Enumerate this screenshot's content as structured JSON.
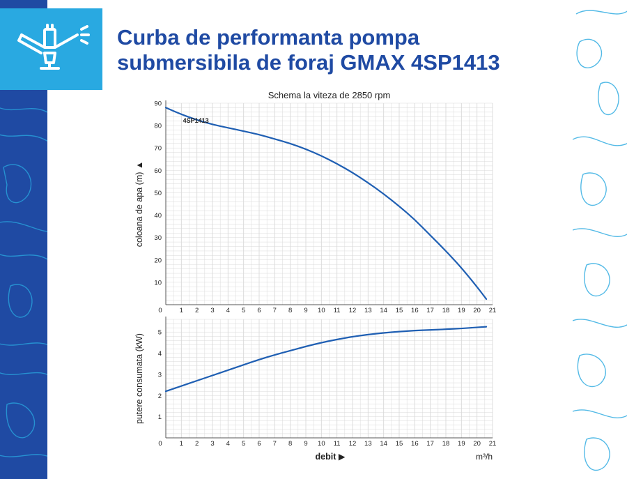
{
  "header": {
    "title_line1": "Curba de performanta pompa",
    "title_line2": "submersibila de foraj GMAX 4SP1413",
    "logo_icon": "submersible-pump-icon"
  },
  "colors": {
    "brand_blue": "#1f4aa3",
    "accent_light_blue": "#29a9e1",
    "curve_blue": "#1f5fb3",
    "grid": "#d9d9d9"
  },
  "chart_data": [
    {
      "type": "line",
      "title": "Schema la viteza de 2850 rpm",
      "xlabel": "",
      "ylabel": "coloana de apa (m) ▲",
      "xlim": [
        0,
        21
      ],
      "ylim": [
        0,
        90
      ],
      "x_ticks": [
        "0",
        "1",
        "2",
        "3",
        "4",
        "5",
        "6",
        "7",
        "8",
        "9",
        "10",
        "11",
        "12",
        "13",
        "14",
        "15",
        "16",
        "17",
        "18",
        "19",
        "20",
        "21"
      ],
      "y_ticks": [
        "10",
        "20",
        "30",
        "40",
        "50",
        "60",
        "70",
        "80",
        "90"
      ],
      "grid": true,
      "series": [
        {
          "name": "4SP1413",
          "x": [
            0,
            1,
            2,
            3,
            4,
            5,
            6,
            7,
            8,
            9,
            10,
            11,
            12,
            13,
            14,
            15,
            16,
            17,
            18,
            19,
            20,
            20.6
          ],
          "y": [
            88,
            85,
            82.5,
            80.5,
            79,
            77.5,
            76,
            74,
            72,
            69.5,
            66.5,
            63,
            59,
            54.5,
            49.5,
            44,
            38,
            31,
            24,
            16.5,
            8,
            2.5
          ]
        }
      ]
    },
    {
      "type": "line",
      "title": "",
      "xlabel": "debit ▶",
      "x_unit": "m³/h",
      "ylabel": "putere consumata (kW)",
      "xlim": [
        0,
        21
      ],
      "ylim": [
        0,
        5.6
      ],
      "x_ticks": [
        "0",
        "1",
        "2",
        "3",
        "4",
        "5",
        "6",
        "7",
        "8",
        "9",
        "10",
        "11",
        "12",
        "13",
        "14",
        "15",
        "16",
        "17",
        "18",
        "19",
        "20",
        "21"
      ],
      "y_ticks": [
        "1",
        "2",
        "3",
        "4",
        "5"
      ],
      "grid": true,
      "series": [
        {
          "x": [
            0,
            1,
            2,
            3,
            4,
            5,
            6,
            7,
            8,
            9,
            10,
            11,
            12,
            13,
            14,
            15,
            16,
            17,
            18,
            19,
            20,
            20.6
          ],
          "y": [
            2.2,
            2.45,
            2.7,
            2.95,
            3.2,
            3.45,
            3.7,
            3.92,
            4.12,
            4.32,
            4.5,
            4.65,
            4.78,
            4.88,
            4.96,
            5.02,
            5.07,
            5.1,
            5.13,
            5.17,
            5.22,
            5.25
          ]
        }
      ]
    }
  ]
}
